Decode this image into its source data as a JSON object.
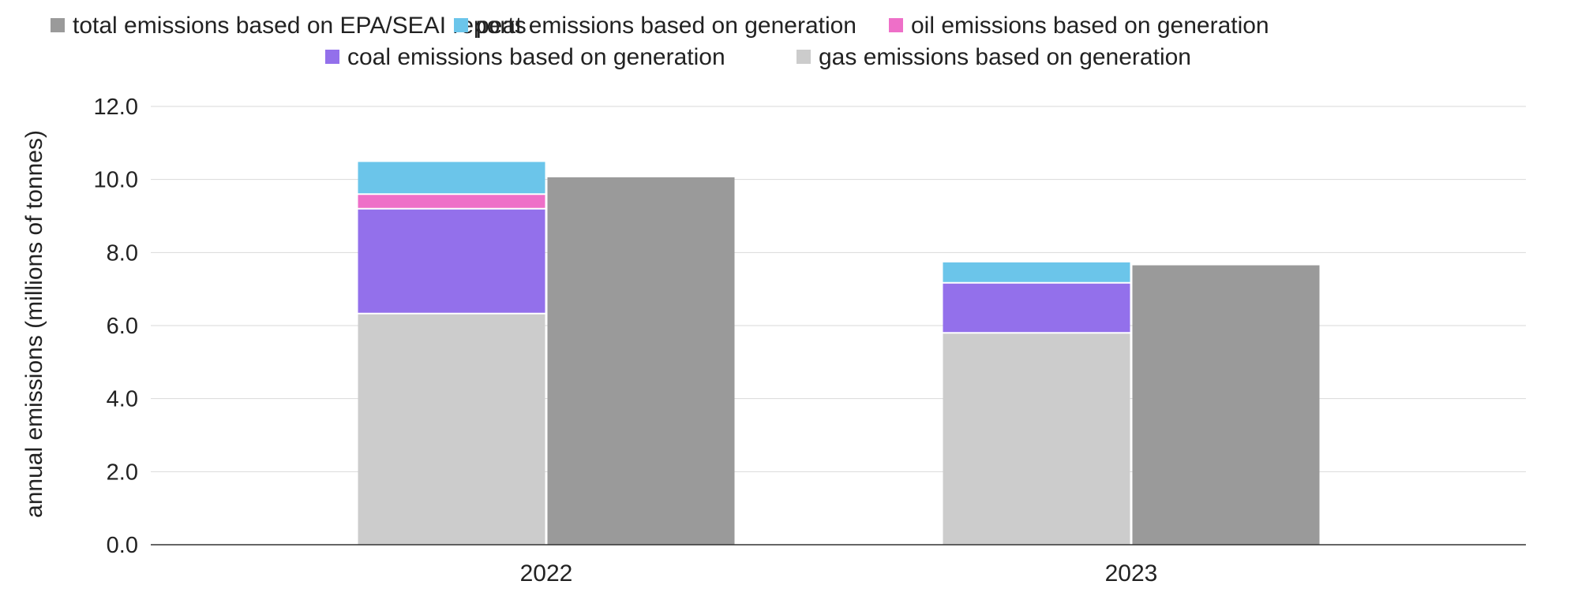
{
  "chart_data": {
    "type": "bar",
    "stacked_and_grouped": true,
    "title": "",
    "xlabel": "",
    "ylabel": "annual emissions (millions of tonnes)",
    "categories": [
      "2022",
      "2023"
    ],
    "ylim": [
      0,
      12
    ],
    "yticks": [
      "0.0",
      "2.0",
      "4.0",
      "6.0",
      "8.0",
      "10.0",
      "12.0"
    ],
    "grid": true,
    "legend_position": "top",
    "stack_series": [
      {
        "name": "gas emissions based on generation",
        "color": "#cccccc",
        "values": [
          6.33,
          5.8
        ]
      },
      {
        "name": "coal emissions based on generation",
        "color": "#9370eb",
        "values": [
          2.87,
          1.37
        ]
      },
      {
        "name": "oil emissions based on generation",
        "color": "#ee6fc8",
        "values": [
          0.4,
          0.0
        ]
      },
      {
        "name": "peat emissions based on generation",
        "color": "#6bc5ea",
        "values": [
          0.88,
          0.56
        ]
      }
    ],
    "total_series": {
      "name": "total emissions based on EPA/SEAI reports",
      "color": "#9a9a9a",
      "values": [
        10.06,
        7.65
      ]
    },
    "legend_order": [
      "total emissions based on EPA/SEAI reports",
      "peat emissions based on generation",
      "oil emissions based on generation",
      "coal emissions based on generation",
      "gas emissions based on generation"
    ]
  }
}
